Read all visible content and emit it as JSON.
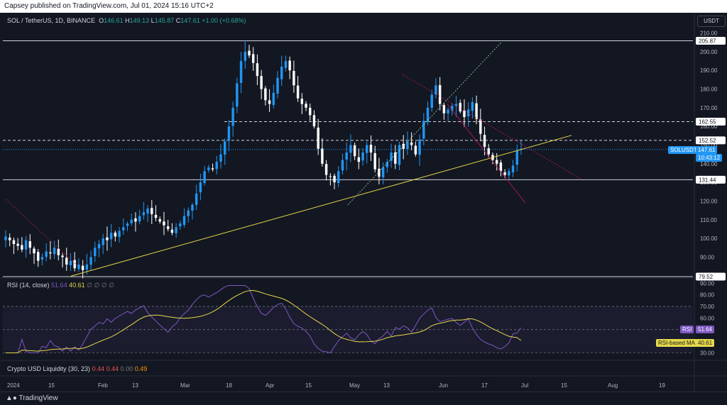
{
  "header": {
    "publish_text": "Capsey published on TradingView.com, Jul 01, 2024 15:16 UTC+2"
  },
  "legend": {
    "symbol": "SOL / TetherUS, 1D, BINANCE",
    "o_label": "O",
    "o_value": "146.61",
    "h_label": "H",
    "h_value": "149.13",
    "l_label": "L",
    "l_value": "145.87",
    "c_label": "C",
    "c_value": "147.61",
    "change": "+1.00 (+0.68%)"
  },
  "currency_button": "USDT",
  "price_axis": {
    "ticks": [
      "210.00",
      "200.00",
      "190.00",
      "180.00",
      "170.00",
      "160.00",
      "150.00",
      "140.00",
      "130.00",
      "120.00",
      "110.00",
      "100.00",
      "90.00"
    ],
    "level_labels": [
      "205.87",
      "162.55",
      "152.52",
      "131.44",
      "79.52"
    ],
    "last_price_symbol": "SOLUSDT",
    "last_price": "147.61",
    "countdown": "10:43:12"
  },
  "rsi_panel": {
    "title": "RSI (14, close)",
    "rsi_value": "51.64",
    "ma_value": "40.61",
    "placeholders": "∅ ∅ ∅ ∅",
    "ticks": [
      "90.00",
      "80.00",
      "70.00",
      "60.00",
      "50.00",
      "40.00",
      "30.00"
    ],
    "tag_rsi_label": "RSI",
    "tag_rsi_value": "51.64",
    "tag_ma_label": "RSI-based MA",
    "tag_ma_value": "40.61"
  },
  "liquidity_panel": {
    "title": "Crypto USD Liquidity (30, 23)",
    "v1": "0.44",
    "v2": "0.44",
    "v3": "0.00",
    "v4": "0.49"
  },
  "time_axis": {
    "labels": [
      "2024",
      "15",
      "Feb",
      "13",
      "Mar",
      "18",
      "Apr",
      "15",
      "May",
      "13",
      "Jun",
      "17",
      "Jul",
      "15",
      "Aug",
      "19"
    ]
  },
  "footer": {
    "brand": "TradingView"
  },
  "colors": {
    "up": "#2196f3",
    "down": "#ffffff",
    "trend": "#e6d94a",
    "rsi": "#7e57c2",
    "rsi_ma": "#e6d94a",
    "background": "#131722"
  },
  "chart_data": {
    "type": "candlestick",
    "symbol": "SOL / TetherUS",
    "interval": "1D",
    "ylim": [
      79.52,
      210
    ],
    "horizontal_levels": [
      205.87,
      162.55,
      152.52,
      131.44,
      79.52
    ],
    "last_price": 147.61,
    "ohlc_last": {
      "open": 146.61,
      "high": 149.13,
      "low": 145.87,
      "close": 147.61
    },
    "approx_closes": [
      101,
      99,
      97,
      96,
      94,
      99,
      95,
      92,
      88,
      90,
      93,
      92,
      95,
      91,
      90,
      86,
      88,
      84,
      86,
      83,
      86,
      90,
      95,
      97,
      100,
      99,
      103,
      101,
      104,
      106,
      108,
      110,
      109,
      112,
      114,
      116,
      113,
      111,
      109,
      107,
      105,
      103,
      106,
      108,
      112,
      115,
      118,
      124,
      130,
      136,
      138,
      137,
      141,
      145,
      152,
      160,
      170,
      183,
      195,
      200,
      198,
      194,
      187,
      180,
      174,
      172,
      178,
      186,
      192,
      195,
      190,
      182,
      175,
      172,
      170,
      166,
      160,
      148,
      140,
      134,
      133,
      130,
      136,
      142,
      146,
      150,
      144,
      141,
      146,
      150,
      146,
      137,
      133,
      138,
      141,
      146,
      140,
      150,
      148,
      152,
      150,
      145,
      153,
      163,
      170,
      177,
      182,
      172,
      167,
      169,
      171,
      172,
      168,
      165,
      169,
      173,
      164,
      156,
      149,
      145,
      142,
      140,
      136,
      134,
      136,
      139,
      147,
      148
    ],
    "rsi": {
      "last": 51.64,
      "ma_last": 40.61,
      "bands": [
        30,
        50,
        70
      ]
    },
    "liquidity": [
      0.44,
      0.44,
      0.0,
      0.49
    ]
  }
}
